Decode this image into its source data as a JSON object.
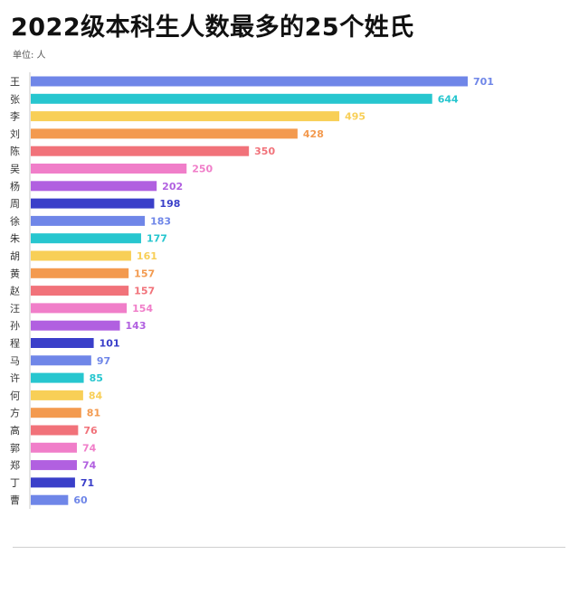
{
  "title": "2022级本科生人数最多的25个姓氏",
  "unit_label": "单位: 人",
  "chart_data": {
    "type": "bar",
    "orientation": "horizontal",
    "title": "2022级本科生人数最多的25个姓氏",
    "unit": "单位: 人",
    "categories": [
      "王",
      "张",
      "李",
      "刘",
      "陈",
      "吴",
      "杨",
      "周",
      "徐",
      "朱",
      "胡",
      "黄",
      "赵",
      "汪",
      "孙",
      "程",
      "马",
      "许",
      "何",
      "方",
      "高",
      "郭",
      "郑",
      "丁",
      "曹"
    ],
    "values": [
      701,
      644,
      495,
      428,
      350,
      250,
      202,
      198,
      183,
      177,
      161,
      157,
      157,
      154,
      143,
      101,
      97,
      85,
      84,
      81,
      76,
      74,
      74,
      71,
      60
    ],
    "xlim": [
      0,
      701
    ],
    "grid": false,
    "legend": "none",
    "data_labels": true,
    "colors": [
      "#6f86e8",
      "#27c6cf",
      "#f8cf57",
      "#f39a4f",
      "#f1727a",
      "#f07ec9",
      "#b160e0",
      "#3a3fc9"
    ]
  }
}
